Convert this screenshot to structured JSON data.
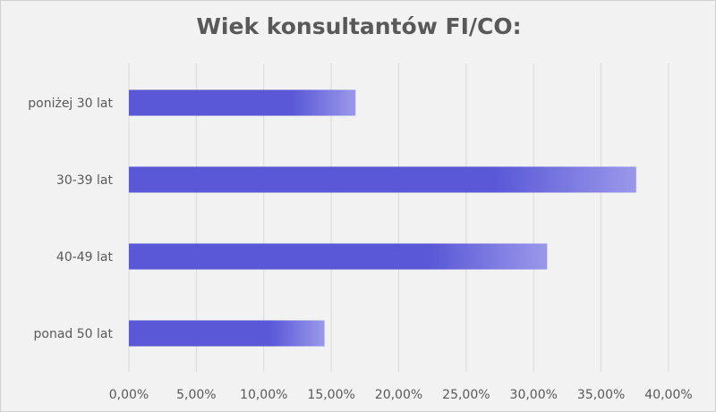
{
  "chart_data": {
    "type": "bar",
    "orientation": "horizontal",
    "title": "Wiek konsultantów FI/CO:",
    "xlabel": "",
    "ylabel": "",
    "categories": [
      "poniżej 30 lat",
      "30-39 lat",
      "40-49 lat",
      "ponad 50 lat"
    ],
    "values": [
      16.8,
      37.6,
      31.0,
      14.5
    ],
    "xlim": [
      0,
      40
    ],
    "x_ticks": [
      "0,00%",
      "5,00%",
      "10,00%",
      "15,00%",
      "20,00%",
      "25,00%",
      "30,00%",
      "35,00%",
      "40,00%"
    ],
    "grid": "vertical",
    "legend": "none",
    "colors": {
      "bar_main": "#5a58d6",
      "bar_end": "#9a98ea",
      "grid": "#d9d9d9",
      "text": "#595959",
      "background": "#f2f2f2"
    }
  }
}
